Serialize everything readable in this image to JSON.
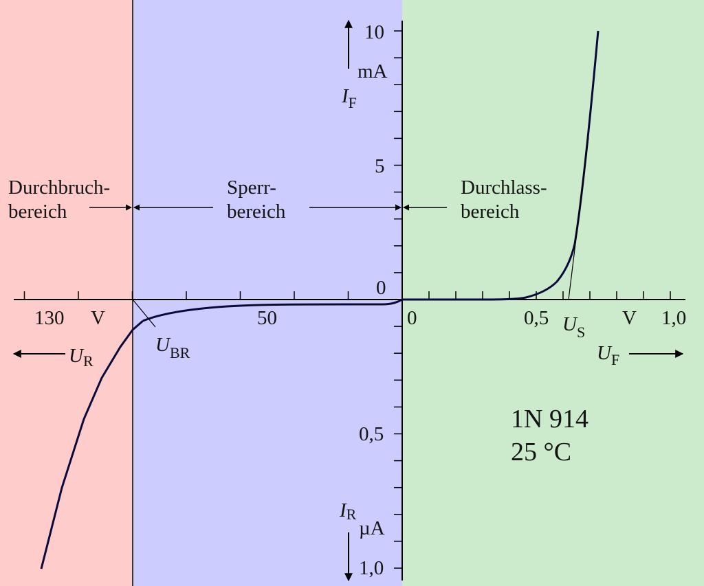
{
  "regions": {
    "breakdown": {
      "label_line1": "Durchbruch-",
      "label_line2": "bereich",
      "color": "#ffcccc",
      "text_color": "#2b0000"
    },
    "reverse": {
      "label_line1": "Sperr-",
      "label_line2": "bereich",
      "color": "#ccccff",
      "text_color": "#00003a"
    },
    "forward": {
      "label_line1": "Durchlass-",
      "label_line2": "bereich",
      "color": "#cceacc",
      "text_color": "#003300"
    }
  },
  "diode": {
    "type": "1N 914",
    "temperature": "25  °C"
  },
  "axes": {
    "forward_current": {
      "symbol": "I",
      "subscript": "F",
      "unit": "mA",
      "ticks": [
        "10",
        "5",
        "0"
      ]
    },
    "reverse_current": {
      "symbol": "I",
      "subscript": "R",
      "unit": "µA",
      "ticks": [
        "0,5",
        "1,0"
      ]
    },
    "forward_voltage": {
      "symbol": "U",
      "subscript": "F",
      "unit": "V",
      "ticks": [
        "0",
        "0,5",
        "1,0"
      ]
    },
    "reverse_voltage": {
      "symbol": "U",
      "subscript": "R",
      "unit": "V",
      "ticks": [
        "50",
        "130"
      ]
    }
  },
  "annotations": {
    "breakdown_voltage": {
      "symbol": "U",
      "subscript": "BR"
    },
    "threshold_voltage": {
      "symbol": "U",
      "subscript": "S"
    }
  },
  "colors": {
    "curve": "#0a0a3a",
    "axis": "#000000",
    "arrow": "#000000"
  }
}
